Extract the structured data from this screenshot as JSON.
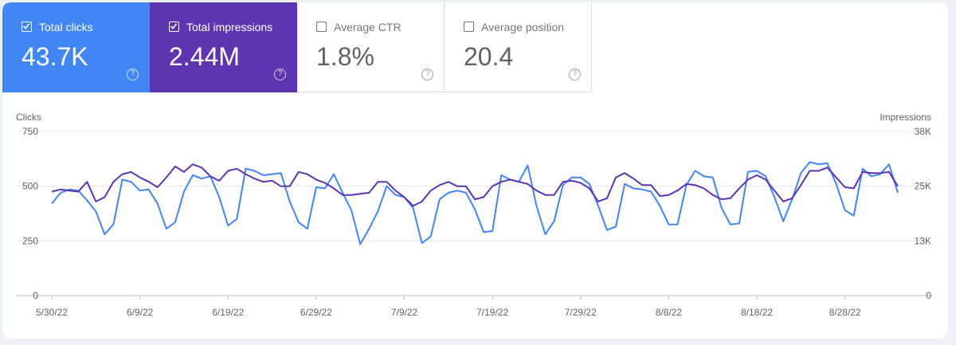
{
  "metrics": [
    {
      "id": "clicks",
      "label": "Total clicks",
      "value": "43.7K",
      "checked": true,
      "help": "?"
    },
    {
      "id": "impressions",
      "label": "Total impressions",
      "value": "2.44M",
      "checked": true,
      "help": "?"
    },
    {
      "id": "ctr",
      "label": "Average CTR",
      "value": "1.8%",
      "checked": false,
      "help": "?"
    },
    {
      "id": "position",
      "label": "Average position",
      "value": "20.4",
      "checked": false,
      "help": "?"
    }
  ],
  "colors": {
    "clicks": "#4285f4",
    "impressions": "#5e35b1",
    "grid": "#e8eaed",
    "axis": "#5f6368"
  },
  "chart_data": {
    "type": "line",
    "left_axis": {
      "title": "Clicks",
      "ticks": [
        "750",
        "500",
        "250",
        "0"
      ],
      "range": [
        0,
        750
      ]
    },
    "right_axis": {
      "title": "Impressions",
      "ticks": [
        "38K",
        "25K",
        "13K",
        "0"
      ],
      "range": [
        0,
        38000
      ]
    },
    "x_ticks": [
      {
        "index": 0,
        "label": "5/30/22"
      },
      {
        "index": 10,
        "label": "6/9/22"
      },
      {
        "index": 20,
        "label": "6/19/22"
      },
      {
        "index": 30,
        "label": "6/29/22"
      },
      {
        "index": 40,
        "label": "7/9/22"
      },
      {
        "index": 50,
        "label": "7/19/22"
      },
      {
        "index": 60,
        "label": "7/29/22"
      },
      {
        "index": 70,
        "label": "8/8/22"
      },
      {
        "index": 80,
        "label": "8/18/22"
      },
      {
        "index": 90,
        "label": "8/28/22"
      }
    ],
    "series": [
      {
        "name": "Clicks",
        "axis": "left",
        "color": "#4285f4",
        "values": [
          420,
          470,
          485,
          480,
          435,
          385,
          280,
          325,
          530,
          520,
          480,
          485,
          420,
          305,
          335,
          475,
          550,
          535,
          545,
          450,
          320,
          350,
          580,
          570,
          550,
          555,
          560,
          430,
          335,
          305,
          495,
          490,
          555,
          470,
          390,
          235,
          305,
          385,
          500,
          460,
          450,
          400,
          240,
          270,
          440,
          470,
          480,
          470,
          395,
          290,
          295,
          550,
          530,
          520,
          595,
          410,
          280,
          340,
          505,
          540,
          540,
          510,
          410,
          300,
          315,
          510,
          490,
          485,
          475,
          410,
          325,
          325,
          505,
          570,
          545,
          540,
          400,
          325,
          330,
          565,
          570,
          545,
          450,
          340,
          440,
          560,
          610,
          600,
          605,
          510,
          390,
          365,
          580,
          545,
          555,
          600,
          470
        ]
      },
      {
        "name": "Impressions",
        "axis": "left",
        "color": "#5e35b1",
        "values": [
          475,
          485,
          480,
          475,
          520,
          430,
          450,
          520,
          555,
          565,
          540,
          520,
          495,
          540,
          590,
          565,
          600,
          585,
          545,
          525,
          570,
          580,
          555,
          535,
          520,
          525,
          500,
          500,
          565,
          555,
          530,
          515,
          490,
          460,
          460,
          465,
          470,
          520,
          520,
          480,
          450,
          410,
          430,
          480,
          505,
          520,
          500,
          500,
          440,
          450,
          500,
          520,
          530,
          520,
          510,
          480,
          460,
          460,
          520,
          525,
          515,
          490,
          430,
          445,
          540,
          560,
          535,
          505,
          505,
          455,
          460,
          480,
          510,
          505,
          490,
          460,
          440,
          445,
          490,
          530,
          550,
          530,
          480,
          430,
          445,
          505,
          570,
          570,
          585,
          540,
          495,
          490,
          565,
          560,
          560,
          565,
          500
        ]
      }
    ]
  }
}
